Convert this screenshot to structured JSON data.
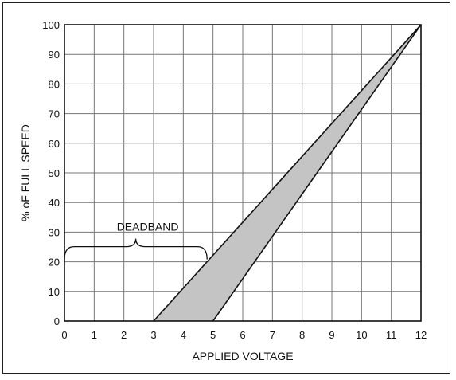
{
  "chart_data": {
    "type": "area",
    "title": "",
    "xlabel": "APPLIED VOLTAGE",
    "ylabel": "% oF FULL SPEED",
    "xlim": [
      0,
      12
    ],
    "ylim": [
      0,
      100
    ],
    "grid": true,
    "x_ticks": [
      0,
      1,
      2,
      3,
      4,
      5,
      6,
      7,
      8,
      9,
      10,
      11,
      12
    ],
    "y_ticks": [
      0,
      10,
      20,
      30,
      40,
      50,
      60,
      70,
      80,
      90,
      100
    ],
    "series": [
      {
        "x": [
          3,
          12
        ],
        "y": [
          0,
          100
        ]
      },
      {
        "x": [
          5,
          12
        ],
        "y": [
          0,
          100
        ]
      }
    ],
    "band": {
      "x": [
        3,
        5,
        12
      ],
      "y": [
        0,
        0,
        100
      ]
    },
    "annotation": {
      "text": "DEADBAND",
      "x_range": [
        0,
        4.8
      ],
      "y": 20,
      "tip_x": 2.4
    },
    "colors": {
      "band_fill": "#c4c4c4",
      "grid": "#777777",
      "line": "#111111"
    }
  }
}
